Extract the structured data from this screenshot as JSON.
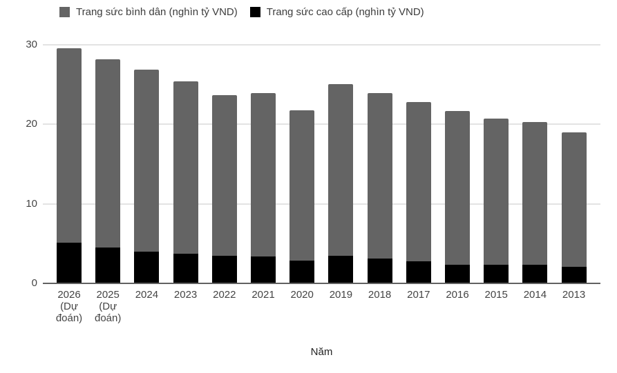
{
  "chart_data": {
    "type": "bar",
    "stacked": true,
    "title": "",
    "xlabel": "Năm",
    "ylabel": "",
    "ylim": [
      0,
      30
    ],
    "yticks": [
      0,
      10,
      20,
      30
    ],
    "grid": true,
    "legend_position": "top",
    "categories": [
      "2026 (Dự đoán)",
      "2025 (Dự đoán)",
      "2024",
      "2023",
      "2022",
      "2021",
      "2020",
      "2019",
      "2018",
      "2017",
      "2016",
      "2015",
      "2014",
      "2013"
    ],
    "category_lines": [
      [
        "2026",
        "(Dự",
        "đoán)"
      ],
      [
        "2025",
        "(Dự",
        "đoán)"
      ],
      [
        "2024"
      ],
      [
        "2023"
      ],
      [
        "2022"
      ],
      [
        "2021"
      ],
      [
        "2020"
      ],
      [
        "2019"
      ],
      [
        "2018"
      ],
      [
        "2017"
      ],
      [
        "2016"
      ],
      [
        "2015"
      ],
      [
        "2014"
      ],
      [
        "2013"
      ]
    ],
    "series": [
      {
        "name": "Trang sức cao cấp (nghìn tỷ VND)",
        "color": "#000000",
        "values": [
          5.1,
          4.5,
          4.0,
          3.7,
          3.5,
          3.4,
          2.9,
          3.5,
          3.1,
          2.8,
          2.3,
          2.3,
          2.3,
          2.1
        ]
      },
      {
        "name": "Trang sức bình dân (nghìn tỷ VND)",
        "color": "#646464",
        "values": [
          24.5,
          23.7,
          22.9,
          21.7,
          20.2,
          20.5,
          18.9,
          21.6,
          20.8,
          20.0,
          19.4,
          18.4,
          18.0,
          16.9
        ]
      }
    ],
    "totals": [
      29.6,
      28.2,
      26.9,
      25.4,
      23.7,
      23.9,
      21.8,
      25.1,
      23.9,
      22.8,
      21.7,
      20.7,
      20.3,
      19.0
    ],
    "legend": [
      {
        "label": "Trang sức bình dân (nghìn tỷ VND)",
        "color": "#646464"
      },
      {
        "label": "Trang sức cao cấp (nghìn tỷ VND)",
        "color": "#000000"
      }
    ],
    "style": {
      "grid_color": "#e3e3e3",
      "axis_color": "#616161",
      "text_color": "#444444",
      "background": "#ffffff"
    }
  }
}
